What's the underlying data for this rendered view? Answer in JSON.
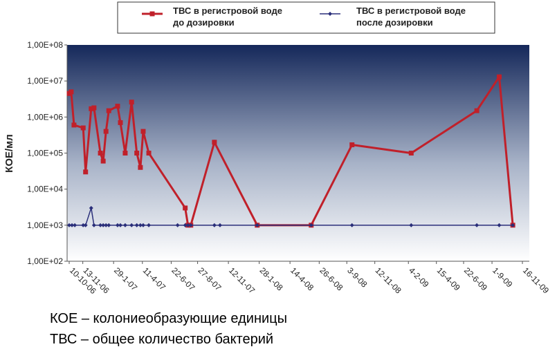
{
  "chart_data": {
    "type": "line",
    "ylabel": "КОЕ/мл",
    "log_y": true,
    "ylim": [
      100,
      100000000
    ],
    "yticks": [
      {
        "value": 100,
        "label": "1,00E+02"
      },
      {
        "value": 1000,
        "label": "1,00E+03"
      },
      {
        "value": 10000,
        "label": "1,00E+04"
      },
      {
        "value": 100000,
        "label": "1,00E+05"
      },
      {
        "value": 1000000,
        "label": "1,00E+06"
      },
      {
        "value": 10000000,
        "label": "1,00E+07"
      },
      {
        "value": 100000000,
        "label": "1,00E+08"
      }
    ],
    "xlim": [
      "2006-10-10",
      "2009-11-16"
    ],
    "xticks": [
      {
        "value": "2006-10-10",
        "label": "10-10-06"
      },
      {
        "value": "2006-11-13",
        "label": "13-11-06"
      },
      {
        "value": "2007-01-29",
        "label": "29-1-07"
      },
      {
        "value": "2007-04-11",
        "label": "11-4-07"
      },
      {
        "value": "2007-06-22",
        "label": "22-6-07"
      },
      {
        "value": "2007-08-27",
        "label": "27-8-07"
      },
      {
        "value": "2007-11-12",
        "label": "12-11-07"
      },
      {
        "value": "2008-01-28",
        "label": "28-1-08"
      },
      {
        "value": "2008-04-14",
        "label": "14-4-08"
      },
      {
        "value": "2008-06-26",
        "label": "26-6-08"
      },
      {
        "value": "2008-09-03",
        "label": "3-9-08"
      },
      {
        "value": "2008-11-12",
        "label": "12-11-08"
      },
      {
        "value": "2009-02-04",
        "label": "4-2-09"
      },
      {
        "value": "2009-04-15",
        "label": "15-4-09"
      },
      {
        "value": "2009-06-22",
        "label": "22-6-09"
      },
      {
        "value": "2009-09-01",
        "label": "1-9-09"
      },
      {
        "value": "2009-11-16",
        "label": "16-11-09"
      }
    ],
    "series": [
      {
        "name": "ТВС в регистровой воде до дозировки",
        "color": "#c0202a",
        "marker": "square",
        "x": [
          "2006-10-10",
          "2006-10-15",
          "2006-10-22",
          "2006-11-14",
          "2006-11-20",
          "2006-12-04",
          "2006-12-11",
          "2006-12-27",
          "2007-01-03",
          "2007-01-10",
          "2007-01-17",
          "2007-02-08",
          "2007-02-15",
          "2007-02-27",
          "2007-03-15",
          "2007-03-28",
          "2007-04-06",
          "2007-04-13",
          "2007-04-27",
          "2007-07-27",
          "2007-08-03",
          "2007-08-10",
          "2007-10-08",
          "2008-01-23",
          "2008-06-06",
          "2008-09-16",
          "2009-02-11",
          "2009-07-25",
          "2009-09-19",
          "2009-10-23"
        ],
        "values": [
          4500000,
          5000000,
          600000,
          500000,
          30000,
          1700000,
          1800000,
          100000,
          60000,
          400000,
          1500000,
          2000000,
          700000,
          100000,
          2600000,
          100000,
          40000,
          400000,
          100000,
          3000,
          1000,
          1000,
          200000,
          1000,
          1000,
          170000,
          100000,
          1500000,
          13000000,
          1000
        ]
      },
      {
        "name": "ТВС в регистровой воде после дозировки",
        "color": "#2a2f7a",
        "marker": "diamond",
        "x": [
          "2006-10-10",
          "2006-10-17",
          "2006-10-24",
          "2006-11-14",
          "2006-11-20",
          "2006-12-04",
          "2006-12-11",
          "2006-12-27",
          "2007-01-03",
          "2007-01-10",
          "2007-01-17",
          "2007-02-08",
          "2007-02-15",
          "2007-02-27",
          "2007-03-15",
          "2007-03-28",
          "2007-04-06",
          "2007-04-13",
          "2007-04-27",
          "2007-07-08",
          "2007-07-27",
          "2007-08-03",
          "2007-08-10",
          "2007-10-08",
          "2007-10-22",
          "2008-01-23",
          "2008-06-06",
          "2008-09-16",
          "2009-02-11",
          "2009-07-25",
          "2009-09-19",
          "2009-10-23"
        ],
        "values": [
          1000,
          1000,
          1000,
          1000,
          1000,
          3000,
          1000,
          1000,
          1000,
          1000,
          1000,
          1000,
          1000,
          1000,
          1000,
          1000,
          1000,
          1000,
          1000,
          1000,
          1000,
          1000,
          1000,
          1000,
          1000,
          1000,
          1000,
          1000,
          1000,
          1000,
          1000,
          1000
        ]
      }
    ]
  },
  "notes": [
    "КОЕ – колониеобразующие единицы",
    "ТВС – общее количество бактерий"
  ]
}
